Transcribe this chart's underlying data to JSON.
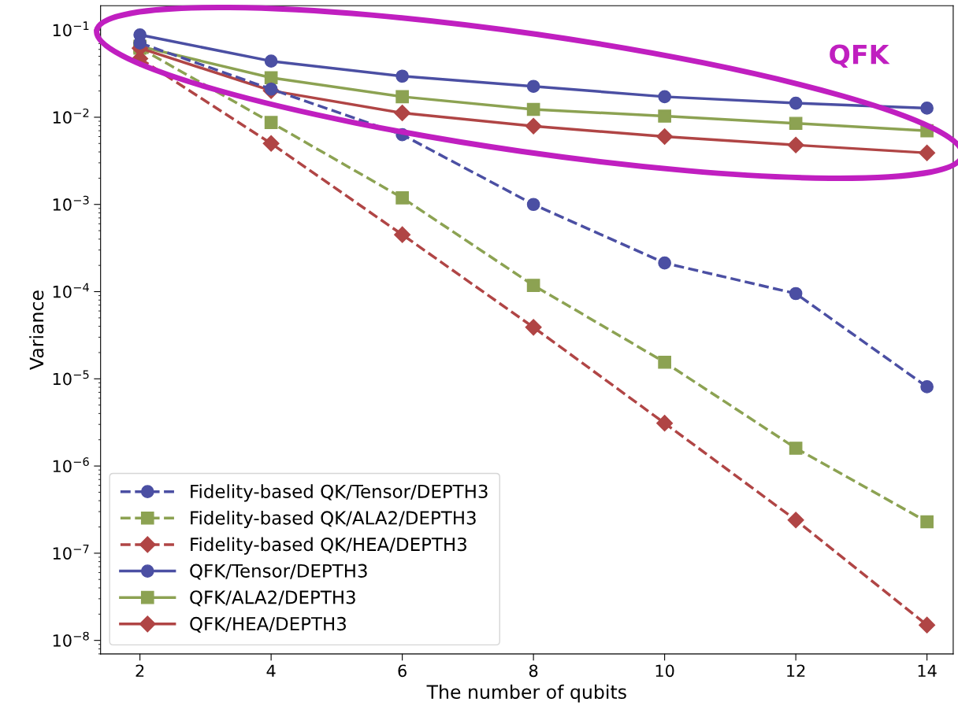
{
  "chart_data": {
    "type": "line",
    "xlabel": "The number of qubits",
    "ylabel": "Variance",
    "log": "y",
    "grid": false,
    "legend": "bottom left",
    "x": [
      2,
      4,
      6,
      8,
      10,
      12,
      14
    ],
    "xlim": [
      1.4,
      14.4
    ],
    "xticks": [
      2,
      4,
      6,
      8,
      10,
      12,
      14
    ],
    "ylim": [
      7e-09,
      0.19
    ],
    "yticks": [
      {
        "value": 1e-08,
        "label": "10$^{−8}$"
      },
      {
        "value": 1e-07,
        "label": "10$^{−7}$"
      },
      {
        "value": 1e-06,
        "label": "10$^{−6}$"
      },
      {
        "value": 1e-05,
        "label": "10$^{−5}$"
      },
      {
        "value": 0.0001,
        "label": "10$^{−4}$"
      },
      {
        "value": 0.001,
        "label": "10$^{−3}$"
      },
      {
        "value": 0.01,
        "label": "10$^{−2}$"
      },
      {
        "value": 0.1,
        "label": "10$^{−1}$"
      }
    ],
    "series": [
      {
        "name": "Fidelity-based QK/Tensor/DEPTH3",
        "color": "#4b4fa3",
        "marker": "circle",
        "line_style": "dashed",
        "values": [
          0.071,
          0.021,
          0.0063,
          0.001,
          0.000213,
          9.5e-05,
          8.1e-06
        ]
      },
      {
        "name": "Fidelity-based QK/ALA2/DEPTH3",
        "color": "#8ca252",
        "marker": "square",
        "line_style": "dashed",
        "values": [
          0.062,
          0.0087,
          0.00119,
          0.000118,
          1.55e-05,
          1.6e-06,
          2.29e-07
        ]
      },
      {
        "name": "Fidelity-based QK/HEA/DEPTH3",
        "color": "#b04545",
        "marker": "diamond",
        "line_style": "dashed",
        "values": [
          0.047,
          0.005,
          0.00045,
          3.9e-05,
          3.1e-06,
          2.4e-07,
          1.5e-08
        ]
      },
      {
        "name": "QFK/Tensor/DEPTH3",
        "color": "#4b4fa3",
        "marker": "circle",
        "line_style": "solid",
        "values": [
          0.088,
          0.044,
          0.0296,
          0.0226,
          0.0172,
          0.0145,
          0.0127
        ]
      },
      {
        "name": "QFK/ALA2/DEPTH3",
        "color": "#8ca252",
        "marker": "square",
        "line_style": "solid",
        "values": [
          0.065,
          0.0284,
          0.0172,
          0.0123,
          0.0103,
          0.0085,
          0.007
        ]
      },
      {
        "name": "QFK/HEA/DEPTH3",
        "color": "#b04545",
        "marker": "diamond",
        "line_style": "solid",
        "values": [
          0.062,
          0.0202,
          0.0112,
          0.0079,
          0.006,
          0.0048,
          0.0039
        ]
      }
    ],
    "annotations": [
      "QFK"
    ]
  }
}
